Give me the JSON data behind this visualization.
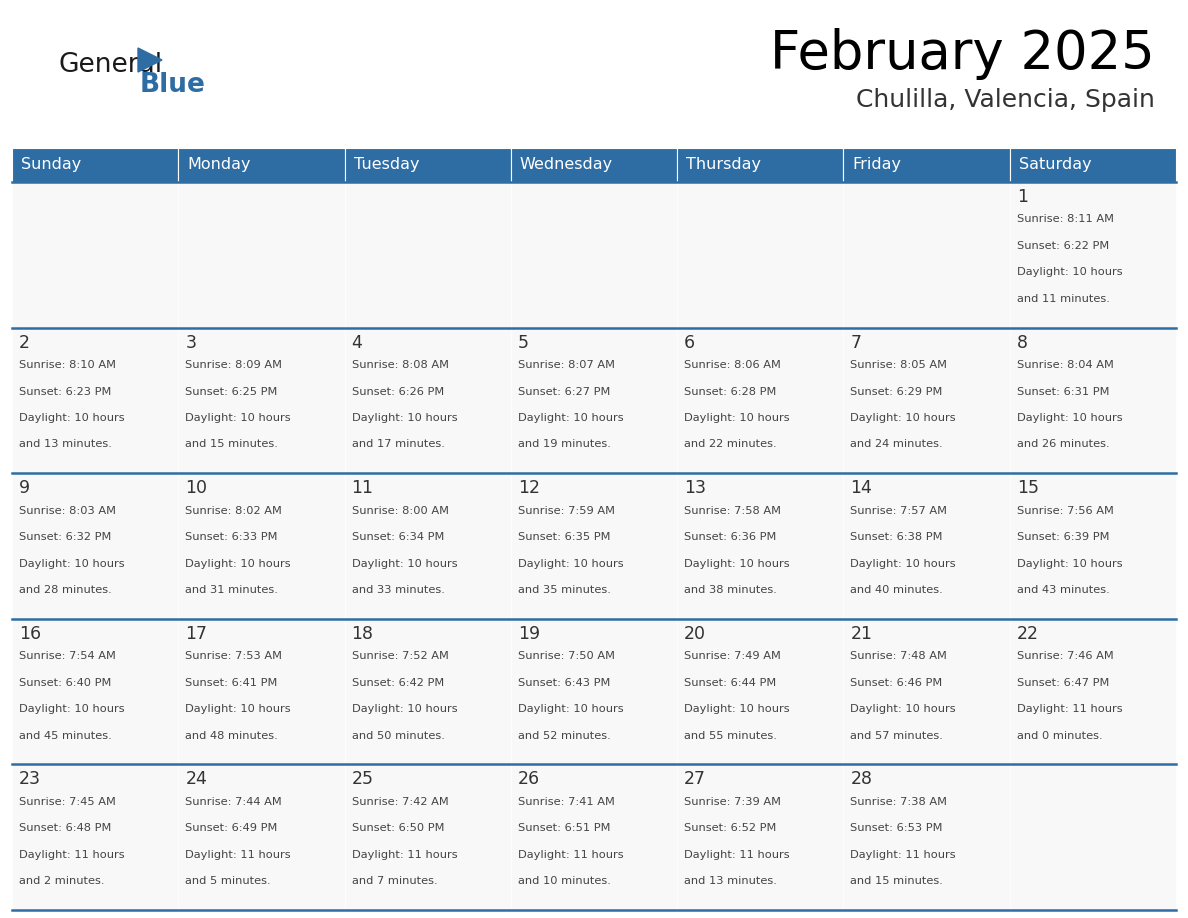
{
  "title": "February 2025",
  "subtitle": "Chulilla, Valencia, Spain",
  "header_color": "#2E6DA4",
  "header_text_color": "#FFFFFF",
  "cell_bg_color": "#FFFFFF",
  "border_color": "#2E6DA4",
  "text_color": "#444444",
  "day_num_color": "#333333",
  "days_of_week": [
    "Sunday",
    "Monday",
    "Tuesday",
    "Wednesday",
    "Thursday",
    "Friday",
    "Saturday"
  ],
  "calendar_data": [
    [
      null,
      null,
      null,
      null,
      null,
      null,
      {
        "day": 1,
        "sunrise": "8:11 AM",
        "sunset": "6:22 PM",
        "daylight": "10 hours",
        "daylight2": "and 11 minutes."
      }
    ],
    [
      {
        "day": 2,
        "sunrise": "8:10 AM",
        "sunset": "6:23 PM",
        "daylight": "10 hours",
        "daylight2": "and 13 minutes."
      },
      {
        "day": 3,
        "sunrise": "8:09 AM",
        "sunset": "6:25 PM",
        "daylight": "10 hours",
        "daylight2": "and 15 minutes."
      },
      {
        "day": 4,
        "sunrise": "8:08 AM",
        "sunset": "6:26 PM",
        "daylight": "10 hours",
        "daylight2": "and 17 minutes."
      },
      {
        "day": 5,
        "sunrise": "8:07 AM",
        "sunset": "6:27 PM",
        "daylight": "10 hours",
        "daylight2": "and 19 minutes."
      },
      {
        "day": 6,
        "sunrise": "8:06 AM",
        "sunset": "6:28 PM",
        "daylight": "10 hours",
        "daylight2": "and 22 minutes."
      },
      {
        "day": 7,
        "sunrise": "8:05 AM",
        "sunset": "6:29 PM",
        "daylight": "10 hours",
        "daylight2": "and 24 minutes."
      },
      {
        "day": 8,
        "sunrise": "8:04 AM",
        "sunset": "6:31 PM",
        "daylight": "10 hours",
        "daylight2": "and 26 minutes."
      }
    ],
    [
      {
        "day": 9,
        "sunrise": "8:03 AM",
        "sunset": "6:32 PM",
        "daylight": "10 hours",
        "daylight2": "and 28 minutes."
      },
      {
        "day": 10,
        "sunrise": "8:02 AM",
        "sunset": "6:33 PM",
        "daylight": "10 hours",
        "daylight2": "and 31 minutes."
      },
      {
        "day": 11,
        "sunrise": "8:00 AM",
        "sunset": "6:34 PM",
        "daylight": "10 hours",
        "daylight2": "and 33 minutes."
      },
      {
        "day": 12,
        "sunrise": "7:59 AM",
        "sunset": "6:35 PM",
        "daylight": "10 hours",
        "daylight2": "and 35 minutes."
      },
      {
        "day": 13,
        "sunrise": "7:58 AM",
        "sunset": "6:36 PM",
        "daylight": "10 hours",
        "daylight2": "and 38 minutes."
      },
      {
        "day": 14,
        "sunrise": "7:57 AM",
        "sunset": "6:38 PM",
        "daylight": "10 hours",
        "daylight2": "and 40 minutes."
      },
      {
        "day": 15,
        "sunrise": "7:56 AM",
        "sunset": "6:39 PM",
        "daylight": "10 hours",
        "daylight2": "and 43 minutes."
      }
    ],
    [
      {
        "day": 16,
        "sunrise": "7:54 AM",
        "sunset": "6:40 PM",
        "daylight": "10 hours",
        "daylight2": "and 45 minutes."
      },
      {
        "day": 17,
        "sunrise": "7:53 AM",
        "sunset": "6:41 PM",
        "daylight": "10 hours",
        "daylight2": "and 48 minutes."
      },
      {
        "day": 18,
        "sunrise": "7:52 AM",
        "sunset": "6:42 PM",
        "daylight": "10 hours",
        "daylight2": "and 50 minutes."
      },
      {
        "day": 19,
        "sunrise": "7:50 AM",
        "sunset": "6:43 PM",
        "daylight": "10 hours",
        "daylight2": "and 52 minutes."
      },
      {
        "day": 20,
        "sunrise": "7:49 AM",
        "sunset": "6:44 PM",
        "daylight": "10 hours",
        "daylight2": "and 55 minutes."
      },
      {
        "day": 21,
        "sunrise": "7:48 AM",
        "sunset": "6:46 PM",
        "daylight": "10 hours",
        "daylight2": "and 57 minutes."
      },
      {
        "day": 22,
        "sunrise": "7:46 AM",
        "sunset": "6:47 PM",
        "daylight": "11 hours",
        "daylight2": "and 0 minutes."
      }
    ],
    [
      {
        "day": 23,
        "sunrise": "7:45 AM",
        "sunset": "6:48 PM",
        "daylight": "11 hours",
        "daylight2": "and 2 minutes."
      },
      {
        "day": 24,
        "sunrise": "7:44 AM",
        "sunset": "6:49 PM",
        "daylight": "11 hours",
        "daylight2": "and 5 minutes."
      },
      {
        "day": 25,
        "sunrise": "7:42 AM",
        "sunset": "6:50 PM",
        "daylight": "11 hours",
        "daylight2": "and 7 minutes."
      },
      {
        "day": 26,
        "sunrise": "7:41 AM",
        "sunset": "6:51 PM",
        "daylight": "11 hours",
        "daylight2": "and 10 minutes."
      },
      {
        "day": 27,
        "sunrise": "7:39 AM",
        "sunset": "6:52 PM",
        "daylight": "11 hours",
        "daylight2": "and 13 minutes."
      },
      {
        "day": 28,
        "sunrise": "7:38 AM",
        "sunset": "6:53 PM",
        "daylight": "11 hours",
        "daylight2": "and 15 minutes."
      },
      null
    ]
  ]
}
